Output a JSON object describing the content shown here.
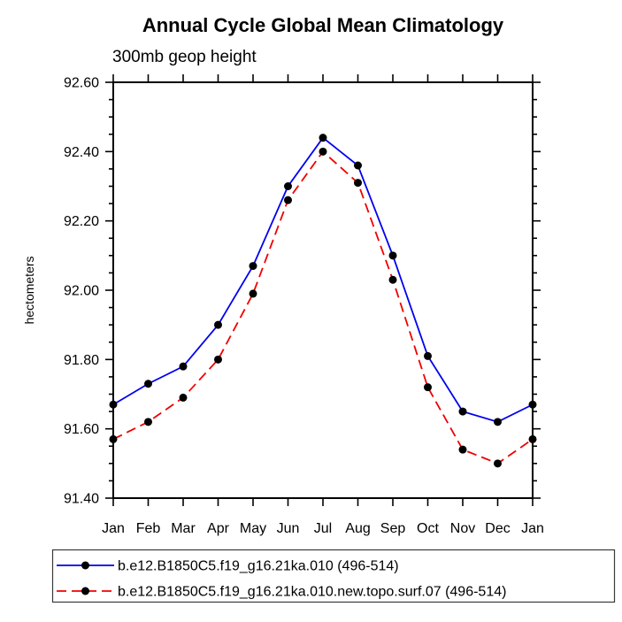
{
  "window": {
    "title": "Annual Cycle Global Mean Climatology"
  },
  "colors": {
    "series1": "#0000f0",
    "series2": "#f00000",
    "marker": "#000000",
    "axis": "#000000",
    "legend_border": "#3a3a3a",
    "background": "#ffffff"
  },
  "chart_data": {
    "type": "line",
    "title": "Annual Cycle Global Mean Climatology",
    "subtitle": "300mb geop height",
    "ylabel": "hectometers",
    "xlabel": "",
    "categories": [
      "Jan",
      "Feb",
      "Mar",
      "Apr",
      "May",
      "Jun",
      "Jul",
      "Aug",
      "Sep",
      "Oct",
      "Nov",
      "Dec",
      "Jan"
    ],
    "series": [
      {
        "name": "b.e12.B1850C5.f19_g16.21ka.010 (496-514)",
        "color": "#0000f0",
        "line_style": "solid",
        "marker": "black-dot",
        "values": [
          91.67,
          91.73,
          91.78,
          91.9,
          92.07,
          92.3,
          92.44,
          92.36,
          92.1,
          91.81,
          91.65,
          91.62,
          91.67
        ]
      },
      {
        "name": "b.e12.B1850C5.f19_g16.21ka.010.new.topo.surf.07 (496-514)",
        "color": "#f00000",
        "line_style": "dashed",
        "marker": "black-dot",
        "values": [
          91.57,
          91.62,
          91.69,
          91.8,
          91.99,
          92.26,
          92.4,
          92.31,
          92.03,
          91.72,
          91.54,
          91.5,
          91.57
        ]
      }
    ],
    "ylim": [
      91.4,
      92.6
    ],
    "ytick_labels": [
      "92.60",
      "92.40",
      "92.20",
      "92.00",
      "91.80",
      "91.60",
      "91.40"
    ],
    "ytick_major_step": 0.2,
    "ytick_minor_step": 0.05,
    "grid": false,
    "legend_position": "bottom"
  }
}
